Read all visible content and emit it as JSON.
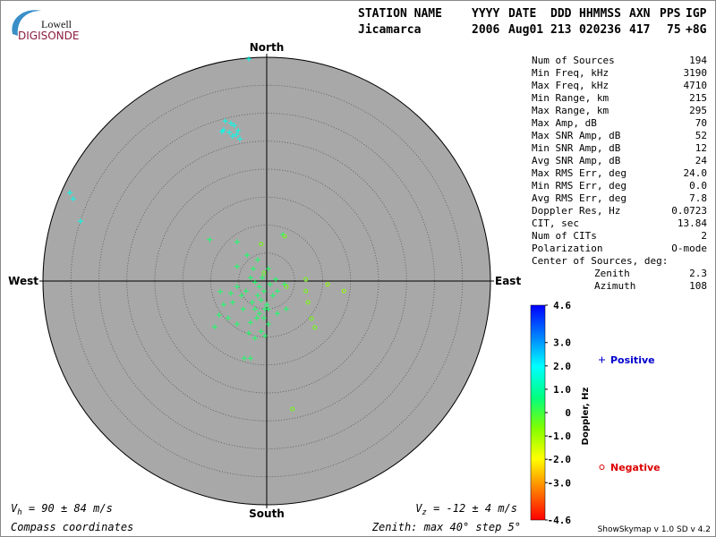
{
  "logo": {
    "top": "Lowell",
    "bottom": "DIGISONDE"
  },
  "header": {
    "labels": [
      "STATION NAME",
      "YYYY",
      "DATE",
      "DDD",
      "HHMMSS",
      "AXN",
      "PPS",
      "IGP"
    ],
    "values": [
      "Jicamarca",
      2006,
      "Aug01",
      213,
      "020236",
      417,
      75,
      "+8G"
    ]
  },
  "stats": {
    "rows": [
      [
        "Num of Sources",
        194
      ],
      [
        "Min Freq, kHz",
        3190
      ],
      [
        "Max Freq, kHz",
        4710
      ],
      [
        "Min Range, km",
        215
      ],
      [
        "Max Range, km",
        295
      ],
      [
        "Max Amp, dB",
        70
      ],
      [
        "Max SNR Amp, dB",
        52
      ],
      [
        "Min SNR Amp, dB",
        12
      ],
      [
        "Avg SNR Amp, dB",
        24
      ],
      [
        "Max RMS Err, deg",
        "24.0"
      ],
      [
        "Min RMS Err, deg",
        "0.0"
      ],
      [
        "Avg RMS Err, deg",
        7.8
      ],
      [
        "Doppler Res, Hz",
        0.0723
      ],
      [
        "CIT, sec",
        13.84
      ],
      [
        "Num of CITs",
        2
      ],
      [
        "Polarization",
        "O-mode"
      ]
    ],
    "center": {
      "label": "Center of Sources, deg:",
      "rows": [
        [
          "Zenith",
          2.3
        ],
        [
          "Azimuth",
          108
        ]
      ]
    }
  },
  "chart_data": {
    "type": "scatter",
    "axis_labels": {
      "north": "North",
      "south": "South",
      "east": "East",
      "west": "West"
    },
    "rlim": [
      0,
      40
    ],
    "rticks": [
      5,
      10,
      15,
      20,
      25,
      30,
      35,
      40
    ],
    "grid": true,
    "series": [
      {
        "name": "Positive",
        "color": "#0000cc",
        "marker": "plus",
        "x": [
          -3.2,
          -7.4,
          -6.4,
          -5.8,
          -7.7,
          -6.7,
          -5.4,
          -6.1,
          -4.8,
          -8.0,
          -5.1,
          -35.2,
          -34.6,
          -33.3,
          -10.2,
          -5.3,
          2.9,
          -3.5,
          -5.3,
          -1.6,
          -2.9,
          -2.1,
          -1.3,
          -0.5,
          -1.6,
          -1.0,
          0,
          -2.1,
          -1.3,
          -0.5,
          -2.9,
          0.3,
          1.1,
          0.6,
          1.9,
          -3.7,
          -4.5,
          -6.1,
          -7.7,
          -8.5,
          -9.3,
          -6.9,
          -5.3,
          -3.2,
          -2.1,
          -1.0,
          0.3,
          1.9,
          3.5,
          -5.3,
          -6.4,
          -8.3,
          0.3,
          1.6,
          3.2,
          -2.4,
          -4.0,
          -2.9,
          -0.3,
          -1.8,
          -2.6,
          -0.8,
          -0.3,
          -4.2
        ],
        "y": [
          39.7,
          28.6,
          28.2,
          27.8,
          27.0,
          26.6,
          26.2,
          25.9,
          25.4,
          26.7,
          26.9,
          15.8,
          14.7,
          10.7,
          7.4,
          7.0,
          8.3,
          4.6,
          2.6,
          3.8,
          0.6,
          -0.2,
          -1.0,
          -1.8,
          -2.6,
          -3.4,
          -4.2,
          -5.0,
          -5.8,
          -6.6,
          -7.4,
          -5.0,
          -2.6,
          -0.6,
          -1.8,
          -1.8,
          -2.6,
          -3.8,
          -4.2,
          -6.1,
          -8.2,
          -6.6,
          -7.7,
          -9.3,
          -10.2,
          -9.0,
          -7.7,
          -5.8,
          -5.0,
          -1.0,
          -2.2,
          -1.9,
          2.2,
          0.3,
          -0.6,
          2.2,
          -13.8,
          -13.8,
          -9.8,
          -6.6,
          -3.8,
          0.6,
          -5.0,
          -5.0
        ],
        "values": [
          1.8,
          1.8,
          1.8,
          1.8,
          1.8,
          1.8,
          1.8,
          1.8,
          1.8,
          1.8,
          1.8,
          1.8,
          1.8,
          1.8,
          0.4,
          0.4,
          0.4,
          0.4,
          0.4,
          0.4,
          0.4,
          0.4,
          0.4,
          0.4,
          0.4,
          0.4,
          0.4,
          0.4,
          0.4,
          0.4,
          0.4,
          0.4,
          0.4,
          0.4,
          0.4,
          0.4,
          0.4,
          0.4,
          0.4,
          0.4,
          0.4,
          0.4,
          0.4,
          0.4,
          0.4,
          0.4,
          0.4,
          0.4,
          0.4,
          0.4,
          0.4,
          0.4,
          0.4,
          0.4,
          0.4,
          0.4,
          0.4,
          0.4,
          0.4,
          0.4,
          0.4,
          0.4,
          0.4,
          0.4
        ]
      },
      {
        "name": "Negative",
        "color": "#dd0000",
        "marker": "circle",
        "x": [
          -1.0,
          3.2,
          7.0,
          7.0,
          7.4,
          10.9,
          13.8,
          8.0,
          8.6,
          4.6,
          -0.5,
          3.5
        ],
        "y": [
          6.6,
          8.0,
          0.3,
          -1.8,
          -3.8,
          -0.6,
          -1.8,
          -6.7,
          -8.3,
          -22.9,
          1.4,
          -1.0
        ],
        "values": [
          -0.5,
          -0.5,
          -0.5,
          -0.5,
          -0.6,
          -0.8,
          -0.8,
          -0.5,
          -0.5,
          -0.5,
          -0.4,
          -0.5
        ]
      }
    ],
    "colorbar": {
      "label": "Doppler, Hz",
      "lim": [
        -4.6,
        4.6
      ],
      "ticks": [
        4.6,
        {
          "value": 3,
          "label": "3.0"
        },
        {
          "value": 2,
          "label": "2.0"
        },
        {
          "value": 1,
          "label": "1.0"
        },
        0,
        {
          "value": -1,
          "label": "-1.0"
        },
        {
          "value": -2,
          "label": "-2.0"
        },
        {
          "value": -3,
          "label": "-3.0"
        },
        -4.6
      ],
      "colors": [
        "#ff0000",
        "#ff8000",
        "#ffff00",
        "#80ff00",
        "#00ff80",
        "#00ffff",
        "#0080ff",
        "#0000ff"
      ]
    },
    "annotations": {
      "vh": {
        "symbol": "V",
        "sub": "h",
        "text": " = 90 ± 84 m/s"
      },
      "vz": {
        "symbol": "V",
        "sub": "z",
        "text": " = -12 ± 4 m/s"
      },
      "coords": "Compass coordinates",
      "zenith": "Zenith: max 40°  step 5°",
      "version": "ShowSkymap v 1.0  SD v 4.2"
    }
  }
}
